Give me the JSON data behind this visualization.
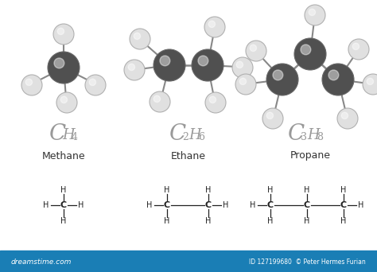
{
  "bg_color": "#ffffff",
  "carbon_color": "#505050",
  "carbon_edge": "#666666",
  "hydrogen_color": "#e0e0e0",
  "hydrogen_edge": "#b0b0b0",
  "bond_color": "#888888",
  "formula_color": "#999999",
  "name_color": "#333333",
  "struct_color": "#222222",
  "footer_color": "#1a7eb5",
  "footer_text": "dreamstime.com",
  "footer_right": "ID 127199680  © Peter Hermes Furian",
  "molecules": [
    "Methane",
    "Ethane",
    "Propane"
  ]
}
